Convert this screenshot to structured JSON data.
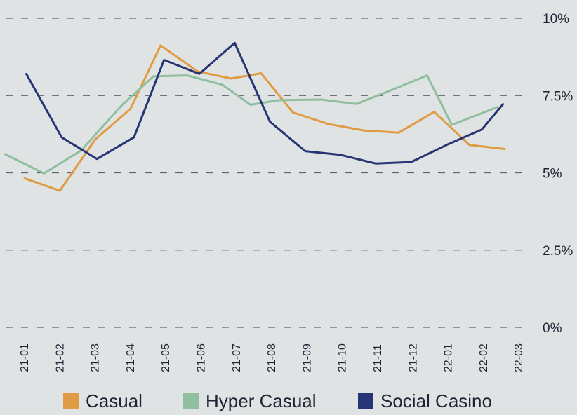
{
  "chart_data": {
    "type": "line",
    "categories": [
      "21-01",
      "21-02",
      "21-03",
      "21-04",
      "21-05",
      "21-06",
      "21-07",
      "21-08",
      "21-09",
      "21-10",
      "21-11",
      "21-12",
      "22-01",
      "22-02",
      "22-03"
    ],
    "ylim": [
      0,
      10
    ],
    "yticks": [
      {
        "value": 0,
        "label": "0%"
      },
      {
        "value": 2.5,
        "label": "2.5%"
      },
      {
        "value": 5,
        "label": "5%"
      },
      {
        "value": 7.5,
        "label": "7.5%"
      },
      {
        "value": 10,
        "label": "10%"
      }
    ],
    "grid": "dashed-horizontal",
    "legend_position": "bottom",
    "series": [
      {
        "name": "Casual",
        "color": "#e09b45",
        "points": [
          {
            "x": 0.0,
            "y": 4.82
          },
          {
            "x": 1.0,
            "y": 4.42
          },
          {
            "x": 2.0,
            "y": 6.08
          },
          {
            "x": 3.0,
            "y": 7.07
          },
          {
            "x": 3.85,
            "y": 9.12
          },
          {
            "x": 4.9,
            "y": 8.28
          },
          {
            "x": 5.85,
            "y": 8.05
          },
          {
            "x": 6.7,
            "y": 8.22
          },
          {
            "x": 7.6,
            "y": 6.95
          },
          {
            "x": 8.6,
            "y": 6.58
          },
          {
            "x": 9.6,
            "y": 6.37
          },
          {
            "x": 10.6,
            "y": 6.3
          },
          {
            "x": 11.6,
            "y": 6.97
          },
          {
            "x": 12.6,
            "y": 5.9
          },
          {
            "x": 13.6,
            "y": 5.77
          }
        ]
      },
      {
        "name": "Hyper Casual",
        "color": "#8fbf9f",
        "points": [
          {
            "x": -0.55,
            "y": 5.6
          },
          {
            "x": 0.55,
            "y": 4.98
          },
          {
            "x": 1.6,
            "y": 5.72
          },
          {
            "x": 2.75,
            "y": 7.18
          },
          {
            "x": 3.65,
            "y": 8.12
          },
          {
            "x": 4.6,
            "y": 8.15
          },
          {
            "x": 5.6,
            "y": 7.85
          },
          {
            "x": 6.4,
            "y": 7.2
          },
          {
            "x": 7.2,
            "y": 7.35
          },
          {
            "x": 8.4,
            "y": 7.37
          },
          {
            "x": 9.4,
            "y": 7.23
          },
          {
            "x": 10.4,
            "y": 7.68
          },
          {
            "x": 11.4,
            "y": 8.15
          },
          {
            "x": 12.1,
            "y": 6.55
          },
          {
            "x": 13.4,
            "y": 7.13
          }
        ]
      },
      {
        "name": "Social Casino",
        "color": "#283574",
        "points": [
          {
            "x": 0.05,
            "y": 8.2
          },
          {
            "x": 1.05,
            "y": 6.15
          },
          {
            "x": 2.05,
            "y": 5.45
          },
          {
            "x": 3.1,
            "y": 6.15
          },
          {
            "x": 3.95,
            "y": 8.65
          },
          {
            "x": 4.95,
            "y": 8.2
          },
          {
            "x": 5.95,
            "y": 9.2
          },
          {
            "x": 6.95,
            "y": 6.65
          },
          {
            "x": 7.95,
            "y": 5.7
          },
          {
            "x": 8.95,
            "y": 5.58
          },
          {
            "x": 9.95,
            "y": 5.3
          },
          {
            "x": 10.95,
            "y": 5.35
          },
          {
            "x": 11.95,
            "y": 5.9
          },
          {
            "x": 12.95,
            "y": 6.4
          },
          {
            "x": 13.55,
            "y": 7.22
          }
        ]
      }
    ]
  }
}
